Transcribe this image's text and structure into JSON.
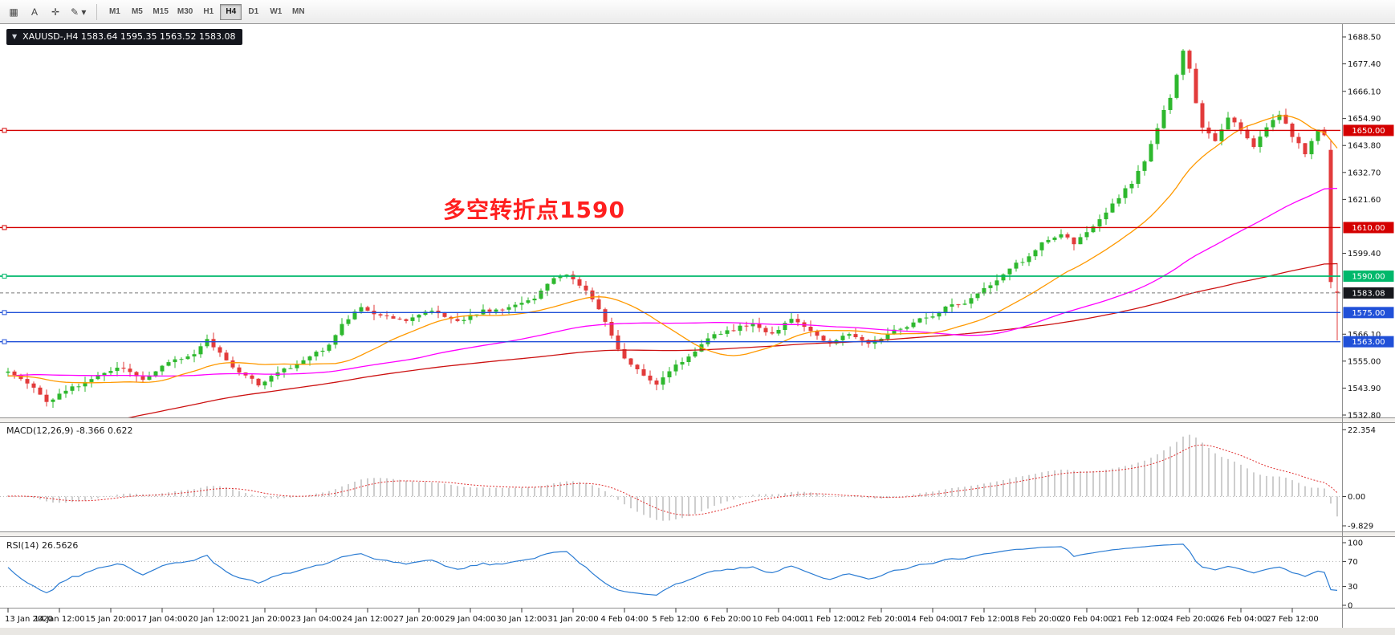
{
  "toolbar": {
    "buttons": [
      {
        "name": "charts-grid-icon",
        "icon": "▦"
      },
      {
        "name": "text-tool-icon",
        "icon": "A"
      },
      {
        "name": "crosshair-icon",
        "icon": "✛"
      },
      {
        "name": "draw-tools-icon",
        "icon": "✎",
        "caret": "▾"
      }
    ],
    "timeframes": [
      "M1",
      "M5",
      "M15",
      "M30",
      "H1",
      "H4",
      "D1",
      "W1",
      "MN"
    ],
    "active_timeframe": "H4"
  },
  "chart": {
    "symbol_info": {
      "caret": "▼",
      "text": "XAUUSD-,H4 1583.64 1595.35 1563.52 1583.08"
    },
    "annotation": {
      "text": "多空转折点1590"
    },
    "price_axis": [
      [
        "1688.50",
        1688.5
      ],
      [
        "1677.40",
        1677.4
      ],
      [
        "1666.10",
        1666.1
      ],
      [
        "1654.90",
        1654.9
      ],
      [
        "1643.80",
        1643.8
      ],
      [
        "1632.70",
        1632.7
      ],
      [
        "1621.60",
        1621.6
      ],
      [
        "1599.40",
        1599.4
      ],
      [
        "1566.10",
        1566.1
      ],
      [
        "1555.00",
        1555.0
      ],
      [
        "1543.90",
        1543.9
      ],
      [
        "1532.80",
        1532.8
      ]
    ],
    "time_axis": [
      "13 Jan 2020",
      "14 Jan 12:00",
      "15 Jan 20:00",
      "17 Jan 04:00",
      "20 Jan 12:00",
      "21 Jan 20:00",
      "23 Jan 04:00",
      "24 Jan 12:00",
      "27 Jan 20:00",
      "29 Jan 04:00",
      "30 Jan 12:00",
      "31 Jan 20:00",
      "4 Feb 04:00",
      "5 Feb 12:00",
      "6 Feb 20:00",
      "10 Feb 04:00",
      "11 Feb 12:00",
      "12 Feb 20:00",
      "14 Feb 04:00",
      "17 Feb 12:00",
      "18 Feb 20:00",
      "20 Feb 04:00",
      "21 Feb 12:00",
      "24 Feb 20:00",
      "26 Feb 04:00",
      "27 Feb 12:00"
    ],
    "levels": [
      {
        "label": "1650.00",
        "value": 1650,
        "color": "#d40000"
      },
      {
        "label": "1610.00",
        "value": 1610,
        "color": "#d40000"
      },
      {
        "label": "1590.00",
        "value": 1590,
        "color": "#00b86b"
      },
      {
        "label": "1575.00",
        "value": 1575,
        "color": "#2050d8"
      },
      {
        "label": "1563.00",
        "value": 1563,
        "color": "#2050d8"
      }
    ],
    "current_price": {
      "label": "1583.08",
      "value": 1583.08,
      "color": "#15171c"
    }
  },
  "indicators": {
    "macd": {
      "label": "MACD(12,26,9) -8.366 0.622",
      "axis": [
        [
          "22.354",
          22.354
        ],
        [
          "0.00",
          0
        ],
        [
          "-9.829",
          -9.829
        ]
      ]
    },
    "rsi": {
      "label": "RSI(14) 26.5626",
      "axis": [
        [
          "100",
          100
        ],
        [
          "70",
          70
        ],
        [
          "30",
          30
        ],
        [
          "0",
          0
        ]
      ],
      "levels": [
        70,
        30
      ]
    }
  },
  "colors": {
    "bull": "#2eb82e",
    "bear": "#e23b3b",
    "ma_fast": "#ff9900",
    "ma_mid": "#ff00ff",
    "ma_slow": "#cc1111",
    "macd_hist": "#b9b9b9",
    "macd_signal": "#e03030",
    "rsi_line": "#2b7cd3",
    "annotation": "#ff1f1f",
    "level_red": "#d40000",
    "level_green": "#00b86b",
    "level_blue": "#2050d8"
  },
  "chart_data": {
    "type": "candlestick",
    "symbol": "XAUUSD-",
    "timeframe": "H4",
    "current_bar": {
      "open": 1583.64,
      "high": 1595.35,
      "low": 1563.52,
      "close": 1583.08
    },
    "visible_price_range": {
      "high": 1688.5,
      "low": 1532.8
    },
    "horizontal_levels": [
      1650,
      1610,
      1590,
      1575,
      1563
    ],
    "candle_count": 208,
    "warmup_start": -130,
    "price_path": [
      [
        -130,
        1462
      ],
      [
        -112,
        1476
      ],
      [
        -95,
        1494
      ],
      [
        -78,
        1514
      ],
      [
        -62,
        1534
      ],
      [
        -48,
        1548
      ],
      [
        -34,
        1553
      ],
      [
        -20,
        1550
      ],
      [
        -8,
        1547
      ],
      [
        0,
        1551
      ],
      [
        3,
        1546
      ],
      [
        6,
        1538
      ],
      [
        9,
        1543
      ],
      [
        13,
        1548
      ],
      [
        17,
        1552
      ],
      [
        21,
        1549
      ],
      [
        25,
        1553
      ],
      [
        29,
        1558
      ],
      [
        31,
        1565
      ],
      [
        33,
        1559
      ],
      [
        36,
        1551
      ],
      [
        39,
        1546
      ],
      [
        43,
        1551
      ],
      [
        47,
        1557
      ],
      [
        50,
        1562
      ],
      [
        52,
        1571
      ],
      [
        55,
        1577
      ],
      [
        58,
        1574
      ],
      [
        62,
        1570
      ],
      [
        66,
        1575
      ],
      [
        70,
        1572
      ],
      [
        74,
        1576
      ],
      [
        78,
        1578
      ],
      [
        82,
        1581
      ],
      [
        85,
        1589
      ],
      [
        87,
        1591
      ],
      [
        90,
        1583
      ],
      [
        93,
        1571
      ],
      [
        96,
        1557
      ],
      [
        99,
        1549
      ],
      [
        101,
        1546
      ],
      [
        104,
        1553
      ],
      [
        108,
        1561
      ],
      [
        112,
        1567
      ],
      [
        116,
        1571
      ],
      [
        119,
        1566
      ],
      [
        122,
        1571
      ],
      [
        125,
        1568
      ],
      [
        128,
        1563
      ],
      [
        131,
        1567
      ],
      [
        134,
        1563
      ],
      [
        137,
        1566
      ],
      [
        140,
        1570
      ],
      [
        143,
        1573
      ],
      [
        146,
        1576
      ],
      [
        149,
        1580
      ],
      [
        152,
        1585
      ],
      [
        155,
        1591
      ],
      [
        158,
        1596
      ],
      [
        161,
        1603
      ],
      [
        164,
        1608
      ],
      [
        166,
        1603
      ],
      [
        168,
        1610
      ],
      [
        171,
        1617
      ],
      [
        173,
        1622
      ],
      [
        175,
        1628
      ],
      [
        177,
        1638
      ],
      [
        179,
        1650
      ],
      [
        181,
        1663
      ],
      [
        183,
        1683
      ],
      [
        184,
        1675
      ],
      [
        185,
        1661
      ],
      [
        186,
        1652
      ],
      [
        188,
        1647
      ],
      [
        190,
        1656
      ],
      [
        192,
        1651
      ],
      [
        194,
        1644
      ],
      [
        196,
        1652
      ],
      [
        198,
        1656
      ],
      [
        200,
        1648
      ],
      [
        202,
        1641
      ],
      [
        203,
        1646
      ],
      [
        204,
        1651
      ],
      [
        205,
        1648
      ],
      [
        206,
        1588
      ],
      [
        207,
        1583
      ]
    ],
    "final_candles": [
      {
        "open": 1642.0,
        "high": 1646.0,
        "low": 1585.0,
        "close": 1587.6
      },
      {
        "open": 1583.64,
        "high": 1595.35,
        "low": 1563.52,
        "close": 1583.08
      }
    ],
    "ma_periods": {
      "orange": 20,
      "magenta": 60,
      "red": 130
    },
    "macd_params": [
      12,
      26,
      9
    ],
    "macd_last": {
      "main": -8.366,
      "signal": 0.622
    },
    "rsi_period": 14,
    "rsi_last": 26.5626
  }
}
